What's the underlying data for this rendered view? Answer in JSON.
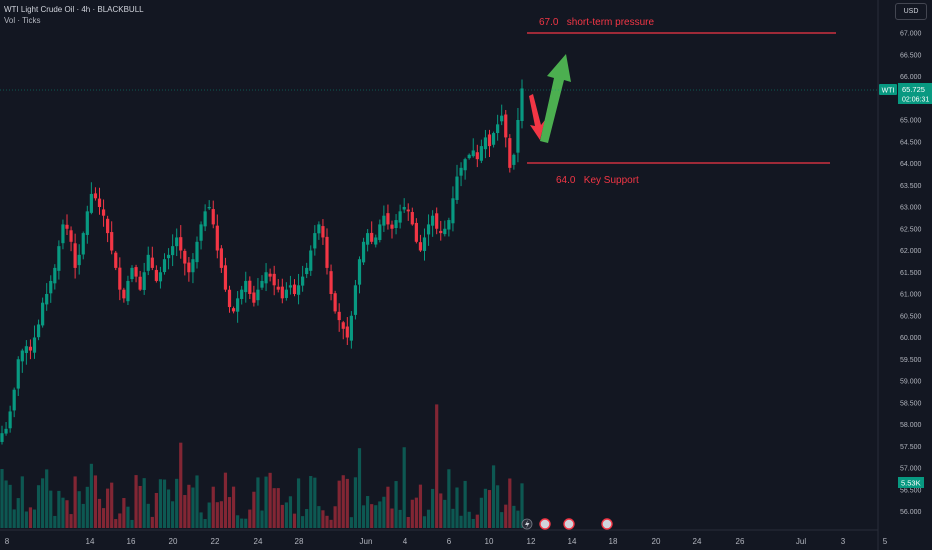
{
  "header": {
    "title": "WTI Light Crude Oil · 4h · BLACKBULL",
    "subtitle": "Vol · Ticks"
  },
  "currency_button": "USD",
  "price_label": {
    "symbol": "WTI",
    "price": "65.725",
    "countdown": "02:06:31"
  },
  "volume_label": "5.53K",
  "annotations": {
    "resistance_text": "67.0   short-term pressure",
    "support_text": "64.0   Key Support"
  },
  "colors": {
    "background": "#131722",
    "up": "#089981",
    "down": "#f23645",
    "annotation": "#f23645",
    "arrow_up": "#4caf50",
    "arrow_down": "#f23645",
    "price_tag": "#089981",
    "axis_text": "#b2b5be"
  },
  "chart_data": {
    "type": "candlestick",
    "title": "WTI Light Crude Oil · 4h · BLACKBULL",
    "xlabel": "",
    "ylabel": "",
    "ylim": [
      55.75,
      67.35
    ],
    "y_ticks": [
      "67.000",
      "66.500",
      "66.000",
      "65.500",
      "65.000",
      "64.500",
      "64.000",
      "63.500",
      "63.000",
      "62.500",
      "62.000",
      "61.500",
      "61.000",
      "60.500",
      "60.000",
      "59.500",
      "59.000",
      "58.500",
      "58.000",
      "57.500",
      "57.000",
      "56.500",
      "56.000"
    ],
    "x_ticks": [
      "8",
      "14",
      "16",
      "20",
      "22",
      "24",
      "28",
      "Jun",
      "4",
      "6",
      "10",
      "12",
      "14",
      "18",
      "20",
      "24",
      "26",
      "Jul",
      "3",
      "5"
    ],
    "grid": false,
    "current_price": 65.725,
    "horizontal_levels": [
      {
        "label": "67.0 short-term pressure",
        "value": 67.0
      },
      {
        "label": "64.0 Key Support",
        "value": 64.0
      }
    ],
    "close_path": [
      57.8,
      57.9,
      58.3,
      58.8,
      59.5,
      59.7,
      59.8,
      59.7,
      60.0,
      60.3,
      60.8,
      61.0,
      61.3,
      61.6,
      62.1,
      62.6,
      62.5,
      62.2,
      61.6,
      61.9,
      62.4,
      62.9,
      63.3,
      63.2,
      63.0,
      62.8,
      62.4,
      62.0,
      61.6,
      61.1,
      60.9,
      61.3,
      61.6,
      61.4,
      61.1,
      61.5,
      61.9,
      61.6,
      61.3,
      61.5,
      61.8,
      61.9,
      62.1,
      62.3,
      62.0,
      61.7,
      61.5,
      61.8,
      62.2,
      62.6,
      62.9,
      63.0,
      62.6,
      62.0,
      61.6,
      61.1,
      60.7,
      60.6,
      60.9,
      61.1,
      61.3,
      61.0,
      60.8,
      61.1,
      61.3,
      61.5,
      61.4,
      61.2,
      61.1,
      60.9,
      61.1,
      61.2,
      61.0,
      61.2,
      61.4,
      61.6,
      62.0,
      62.4,
      62.6,
      62.3,
      61.6,
      61.0,
      60.6,
      60.4,
      60.2,
      60.0,
      60.5,
      61.2,
      61.8,
      62.2,
      62.4,
      62.2,
      62.3,
      62.6,
      62.8,
      62.6,
      62.5,
      62.7,
      62.9,
      63.0,
      62.9,
      62.6,
      62.2,
      62.0,
      62.3,
      62.6,
      62.8,
      62.5,
      62.4,
      62.5,
      62.7,
      63.2,
      63.7,
      63.9,
      64.1,
      64.2,
      64.3,
      64.1,
      64.4,
      64.6,
      64.4,
      64.7,
      64.9,
      65.1,
      64.6,
      63.9,
      64.2,
      65.0,
      65.725
    ],
    "volume_label": "5.53K"
  }
}
